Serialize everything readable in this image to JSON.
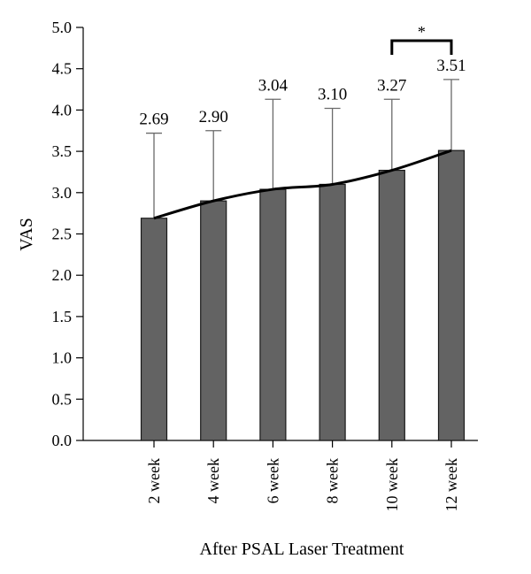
{
  "chart_data": {
    "type": "bar",
    "title": "",
    "xlabel": "After PSAL Laser Treatment",
    "ylabel": "VAS",
    "categories": [
      "2 week",
      "4 week",
      "6 week",
      "8 week",
      "10 week",
      "12 week"
    ],
    "values": [
      2.69,
      2.9,
      3.04,
      3.1,
      3.27,
      3.51
    ],
    "value_labels": [
      "2.69",
      "2.90",
      "3.04",
      "3.10",
      "3.27",
      "3.51"
    ],
    "error_upper": [
      3.72,
      3.75,
      4.13,
      4.02,
      4.13,
      4.37
    ],
    "ylim": [
      0,
      5
    ],
    "yticks": [
      "0.0",
      "0.5",
      "1.0",
      "1.5",
      "2.0",
      "2.5",
      "3.0",
      "3.5",
      "4.0",
      "4.5",
      "5.0"
    ],
    "trend_line": true,
    "significance": {
      "from": "10 week",
      "to": "12 week",
      "label": "*"
    },
    "grid": false,
    "colors": {
      "bar_fill": "#636363",
      "bar_edge": "#1a1a1a",
      "error_bar": "#6a6a6a",
      "line": "#000000"
    }
  }
}
